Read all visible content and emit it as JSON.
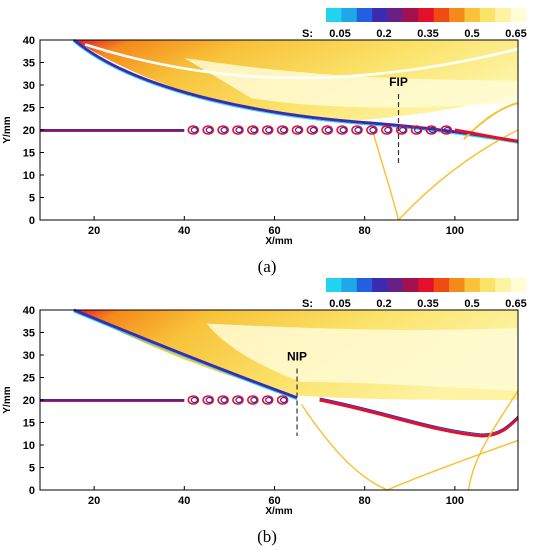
{
  "palette": [
    "#22d3ee",
    "#1ea8ea",
    "#2160df",
    "#3b2bb0",
    "#6a1f86",
    "#a3104e",
    "#e3102b",
    "#f04b12",
    "#f58a1b",
    "#f8c23a",
    "#fbe36a",
    "#fdf3a2",
    "#fffcd6"
  ],
  "chart_data": [
    {
      "type": "heatmap",
      "panel_label": "(a)",
      "xlabel": "X/mm",
      "ylabel": "Y/mm",
      "xlim": [
        8,
        114
      ],
      "ylim": [
        0,
        40
      ],
      "xticks": [
        20,
        40,
        60,
        80,
        100
      ],
      "yticks": [
        0,
        5,
        10,
        15,
        20,
        25,
        30,
        35,
        40
      ],
      "colorbar": {
        "label": "S:",
        "ticks": [
          0.05,
          0.2,
          0.35,
          0.5,
          0.65
        ]
      },
      "annotation": {
        "text": "FIP",
        "x": 87.5,
        "y_top": 28,
        "y_bottom": 12
      },
      "features": {
        "shear_layer_y": 20,
        "shock_start": [
          15.5,
          40
        ],
        "shock_end": [
          114,
          17.5
        ],
        "reflected_foot_x": 87.5
      }
    },
    {
      "type": "heatmap",
      "panel_label": "(b)",
      "xlabel": "X/mm",
      "ylabel": "Y/mm",
      "xlim": [
        8,
        114
      ],
      "ylim": [
        0,
        40
      ],
      "xticks": [
        20,
        40,
        60,
        80,
        100
      ],
      "yticks": [
        0,
        5,
        10,
        15,
        20,
        25,
        30,
        35,
        40
      ],
      "colorbar": {
        "label": "S:",
        "ticks": [
          0.05,
          0.2,
          0.35,
          0.5,
          0.65
        ]
      },
      "annotation": {
        "text": "NIP",
        "x": 65,
        "y_top": 27,
        "y_bottom": 12
      },
      "features": {
        "shear_layer_y": 20,
        "shock_start": [
          15.5,
          40
        ],
        "shock_end": [
          65,
          20.5
        ],
        "reflected_foot_x": 85
      }
    }
  ]
}
